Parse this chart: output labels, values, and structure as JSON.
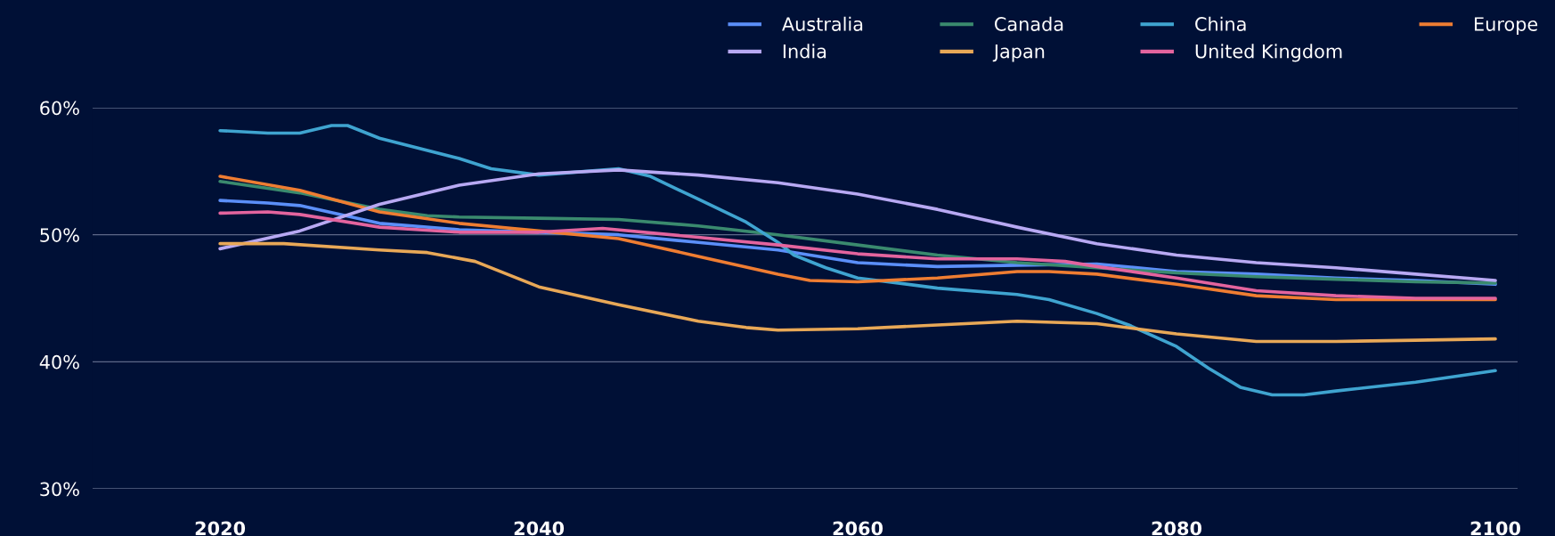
{
  "chart_data": {
    "type": "line",
    "xlim": [
      2012,
      2101.4
    ],
    "xticks": [
      2020,
      2040,
      2060,
      2080,
      2100
    ],
    "ylim": [
      30,
      60
    ],
    "yticks": [
      {
        "value": 30,
        "label": "30%"
      },
      {
        "value": 40,
        "label": "40%"
      },
      {
        "value": 50,
        "label": "50%"
      },
      {
        "value": 60,
        "label": "60%"
      }
    ],
    "grid": "y",
    "legend": "top right",
    "marker": "none",
    "line_style": "solid",
    "series": [
      {
        "name": "Australia",
        "color": "#5b8ff9",
        "x": [
          2020,
          2023,
          2025,
          2030,
          2035,
          2040,
          2045,
          2050,
          2055,
          2060,
          2065,
          2070,
          2075,
          2080,
          2085,
          2090,
          2095,
          2100
        ],
        "values": [
          52.7,
          52.5,
          52.3,
          50.9,
          50.4,
          50.2,
          50.0,
          49.4,
          48.8,
          47.8,
          47.5,
          47.6,
          47.7,
          47.1,
          46.9,
          46.6,
          46.4,
          46.1
        ]
      },
      {
        "name": "Canada",
        "color": "#3a8a6e",
        "x": [
          2020,
          2025,
          2030,
          2033,
          2035,
          2040,
          2045,
          2050,
          2055,
          2060,
          2065,
          2070,
          2075,
          2080,
          2085,
          2090,
          2095,
          2100
        ],
        "values": [
          54.2,
          53.3,
          52.0,
          51.5,
          51.4,
          51.3,
          51.2,
          50.7,
          50.0,
          49.2,
          48.4,
          47.8,
          47.4,
          47.0,
          46.7,
          46.5,
          46.3,
          46.2
        ]
      },
      {
        "name": "China",
        "color": "#3fa4d0",
        "x": [
          2020,
          2023,
          2025,
          2027,
          2028,
          2030,
          2035,
          2037,
          2040,
          2043,
          2045,
          2047,
          2050,
          2053,
          2055,
          2056,
          2058,
          2060,
          2065,
          2070,
          2072,
          2075,
          2077,
          2080,
          2082,
          2084,
          2086,
          2088,
          2090,
          2095,
          2100
        ],
        "values": [
          58.2,
          58.0,
          58.0,
          58.6,
          58.6,
          57.6,
          56.0,
          55.2,
          54.7,
          55.0,
          55.2,
          54.6,
          52.8,
          51.0,
          49.4,
          48.4,
          47.4,
          46.6,
          45.8,
          45.3,
          44.9,
          43.8,
          42.9,
          41.2,
          39.5,
          38.0,
          37.4,
          37.4,
          37.7,
          38.4,
          39.3
        ]
      },
      {
        "name": "Europe",
        "color": "#ef7d32",
        "x": [
          2020,
          2025,
          2030,
          2035,
          2040,
          2045,
          2050,
          2055,
          2057,
          2060,
          2065,
          2070,
          2072,
          2075,
          2080,
          2085,
          2090,
          2095,
          2100
        ],
        "values": [
          54.6,
          53.5,
          51.8,
          50.9,
          50.3,
          49.7,
          48.3,
          46.9,
          46.4,
          46.3,
          46.6,
          47.1,
          47.1,
          46.9,
          46.1,
          45.2,
          44.9,
          44.9,
          44.9
        ]
      },
      {
        "name": "India",
        "color": "#b8a9f3",
        "x": [
          2020,
          2025,
          2030,
          2035,
          2040,
          2045,
          2050,
          2055,
          2060,
          2065,
          2070,
          2075,
          2080,
          2085,
          2090,
          2095,
          2100
        ],
        "values": [
          48.9,
          50.3,
          52.4,
          53.9,
          54.8,
          55.1,
          54.7,
          54.1,
          53.2,
          52.0,
          50.6,
          49.3,
          48.4,
          47.8,
          47.4,
          46.9,
          46.4
        ]
      },
      {
        "name": "Japan",
        "color": "#e8a857",
        "x": [
          2020,
          2024,
          2030,
          2033,
          2036,
          2040,
          2045,
          2050,
          2053,
          2055,
          2060,
          2065,
          2070,
          2075,
          2080,
          2085,
          2090,
          2095,
          2100
        ],
        "values": [
          49.3,
          49.3,
          48.8,
          48.6,
          47.9,
          45.9,
          44.5,
          43.2,
          42.7,
          42.5,
          42.6,
          42.9,
          43.2,
          43.0,
          42.2,
          41.6,
          41.6,
          41.7,
          41.8
        ]
      },
      {
        "name": "United Kingdom",
        "color": "#e3649e",
        "x": [
          2020,
          2023,
          2025,
          2030,
          2035,
          2040,
          2044,
          2050,
          2055,
          2060,
          2065,
          2070,
          2073,
          2075,
          2080,
          2085,
          2090,
          2095,
          2100
        ],
        "values": [
          51.7,
          51.8,
          51.6,
          50.6,
          50.2,
          50.2,
          50.5,
          49.8,
          49.2,
          48.5,
          48.1,
          48.1,
          47.9,
          47.5,
          46.6,
          45.6,
          45.2,
          45.0,
          45.0
        ]
      }
    ]
  }
}
